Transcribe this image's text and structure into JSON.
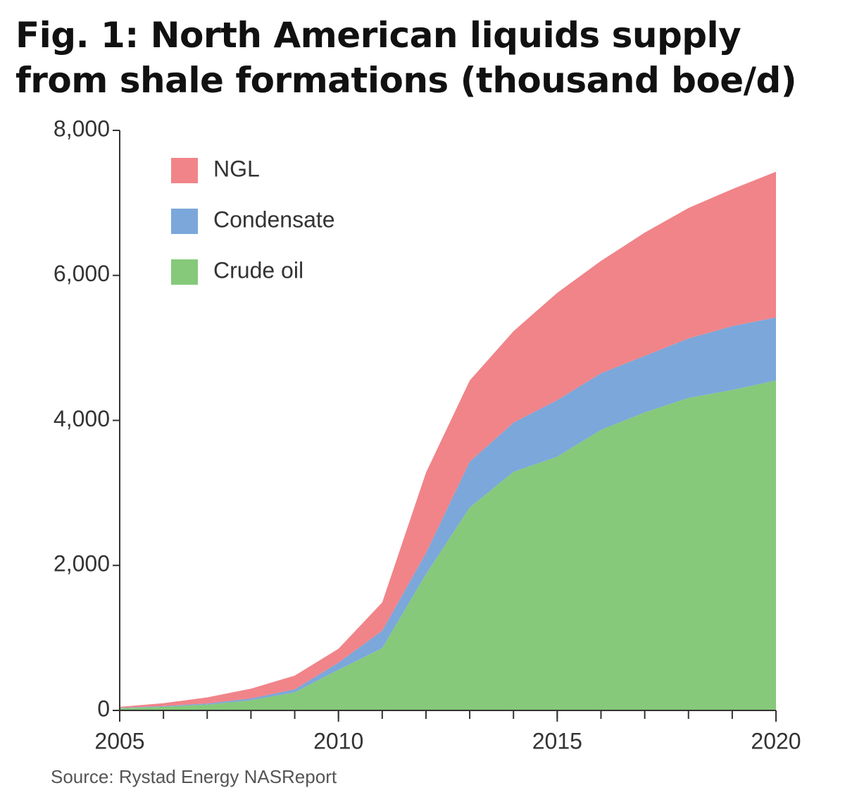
{
  "chart_data": {
    "type": "stacked-area",
    "title": "Fig. 1: North American liquids supply from shale formations (thousand boe/d)",
    "source": "Source:  Rystad Energy NASReport",
    "x": [
      2005,
      2006,
      2007,
      2008,
      2009,
      2010,
      2011,
      2012,
      2013,
      2014,
      2015,
      2016,
      2017,
      2018,
      2019,
      2020
    ],
    "series": [
      {
        "name": "Crude oil",
        "color": "#86c97a",
        "values": [
          30,
          50,
          80,
          140,
          250,
          560,
          860,
          1880,
          2800,
          3290,
          3500,
          3870,
          4110,
          4310,
          4420,
          4550
        ]
      },
      {
        "name": "Condensate",
        "color": "#7ba7da",
        "values": [
          5,
          10,
          15,
          25,
          40,
          100,
          240,
          290,
          630,
          680,
          780,
          780,
          780,
          820,
          880,
          870
        ]
      },
      {
        "name": "NGL",
        "color": "#f08489",
        "values": [
          15,
          40,
          85,
          135,
          190,
          190,
          390,
          1110,
          1120,
          1260,
          1480,
          1550,
          1700,
          1800,
          1890,
          2010
        ]
      }
    ],
    "xlim": [
      2005,
      2020
    ],
    "xticks": [
      2005,
      2010,
      2015,
      2020
    ],
    "ylim": [
      0,
      8000
    ],
    "yticks": [
      0,
      {
        "value": 2000,
        "label": "2,000"
      },
      {
        "value": 4000,
        "label": "4,000"
      },
      {
        "value": 6000,
        "label": "6,000"
      },
      {
        "value": 8000,
        "label": "8,000"
      }
    ],
    "grid": false,
    "legend": "upper left"
  }
}
